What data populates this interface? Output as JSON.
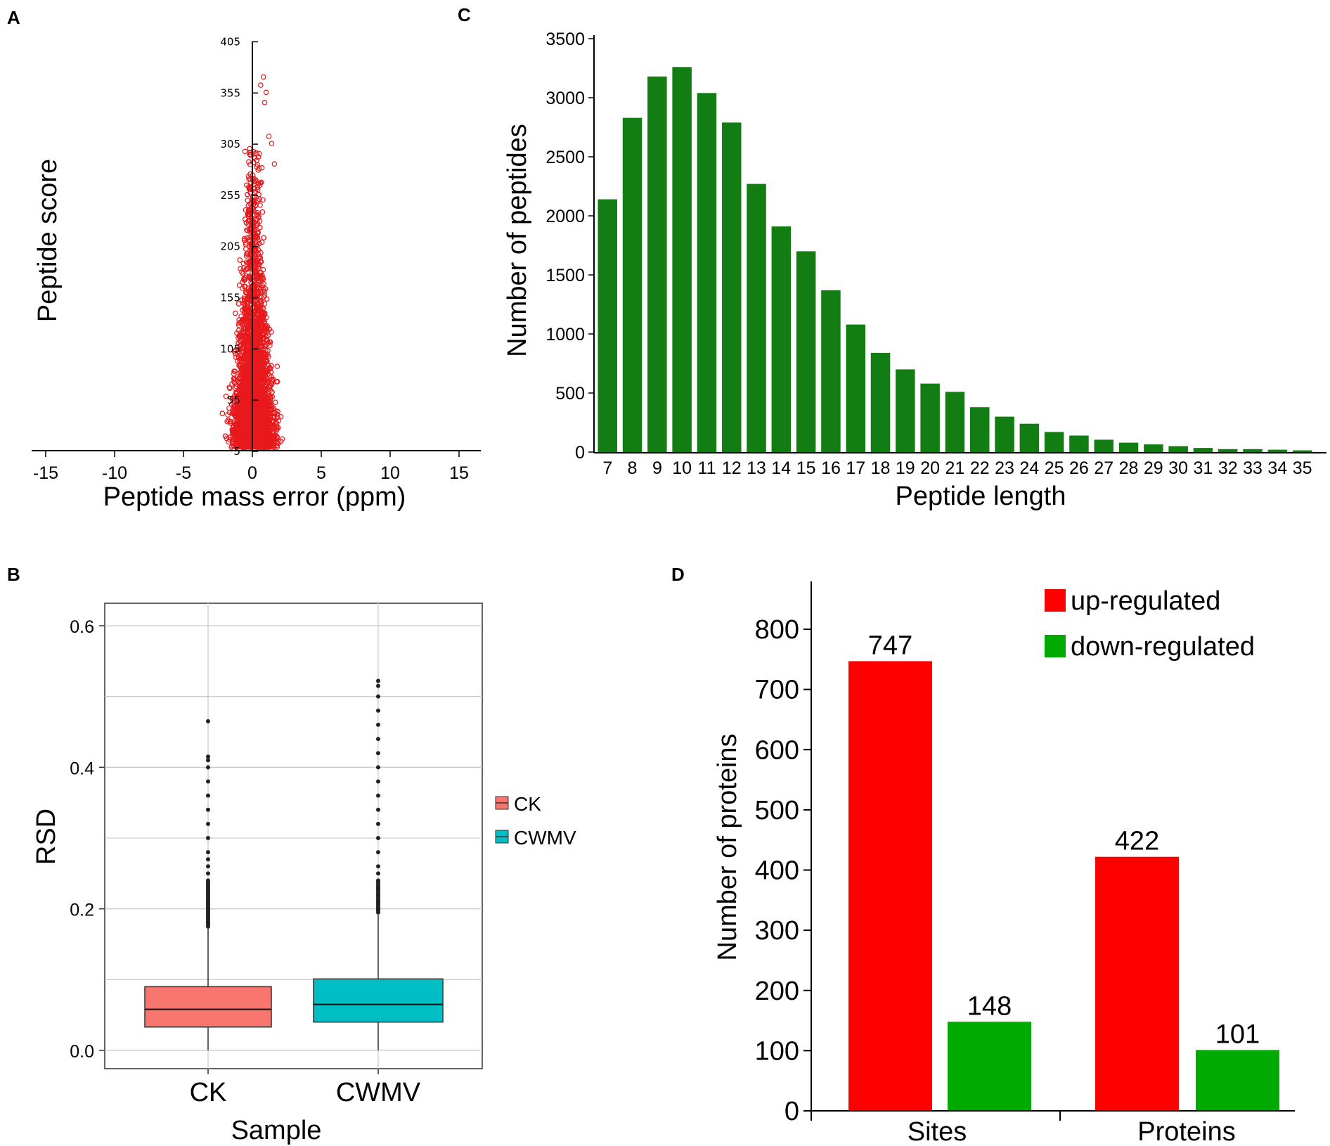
{
  "panels": {
    "A": {
      "letter": "A"
    },
    "B": {
      "letter": "B"
    },
    "C": {
      "letter": "C"
    },
    "D": {
      "letter": "D"
    }
  },
  "chart_data": [
    {
      "id": "A",
      "type": "scatter",
      "xlabel": "Peptide mass error (ppm)",
      "ylabel": "Peptide score",
      "xlim": [
        -17,
        16
      ],
      "ylim": [
        5,
        405
      ],
      "xticks": [
        "-15",
        "-10",
        "-5",
        "0",
        "5",
        "10",
        "15"
      ],
      "yticks": [
        "5",
        "55",
        "105",
        "155",
        "205",
        "255",
        "305",
        "355",
        "405"
      ],
      "point_color": "#e8191c",
      "point_count": 4200,
      "distribution": "funnel centered at 0 ppm; spread about ±2.5 ppm at low scores narrowing to ±0.5 ppm near score 300; maximum score ≈ 370"
    },
    {
      "id": "B",
      "type": "box",
      "title": "",
      "xlabel": "Sample",
      "ylabel": "RSD",
      "ylim": [
        -0.03,
        0.63
      ],
      "yticks": [
        "0.0",
        "0.2",
        "0.4",
        "0.6"
      ],
      "categories": [
        "CK",
        "CWMV"
      ],
      "legend": [
        "CK",
        "CWMV"
      ],
      "legend_position": "right",
      "series": [
        {
          "name": "CK",
          "color": "#f8766d",
          "min": 0.0,
          "q1": 0.033,
          "median": 0.058,
          "q3": 0.09,
          "whisker_high": 0.175,
          "max": 0.465,
          "outliers": [
            0.18,
            0.19,
            0.2,
            0.21,
            0.22,
            0.23,
            0.24,
            0.25,
            0.26,
            0.27,
            0.28,
            0.3,
            0.32,
            0.34,
            0.36,
            0.38,
            0.4,
            0.41,
            0.415,
            0.465
          ]
        },
        {
          "name": "CWMV",
          "color": "#00bfc4",
          "min": 0.0,
          "q1": 0.04,
          "median": 0.065,
          "q3": 0.101,
          "whisker_high": 0.195,
          "max": 0.522,
          "outliers": [
            0.2,
            0.21,
            0.22,
            0.23,
            0.24,
            0.25,
            0.26,
            0.28,
            0.3,
            0.32,
            0.34,
            0.36,
            0.38,
            0.4,
            0.42,
            0.44,
            0.46,
            0.48,
            0.5,
            0.515,
            0.522
          ]
        }
      ]
    },
    {
      "id": "C",
      "type": "bar",
      "xlabel": "Peptide length",
      "ylabel": "Number of peptides",
      "ylim": [
        0,
        3500
      ],
      "yticks": [
        "0",
        "500",
        "1000",
        "1500",
        "2000",
        "2500",
        "3000",
        "3500"
      ],
      "bar_color": "#127d12",
      "categories": [
        "7",
        "8",
        "9",
        "10",
        "11",
        "12",
        "13",
        "14",
        "15",
        "16",
        "17",
        "18",
        "19",
        "20",
        "21",
        "22",
        "23",
        "24",
        "25",
        "26",
        "27",
        "28",
        "29",
        "30",
        "31",
        "32",
        "33",
        "34",
        "35"
      ],
      "values": [
        2140,
        2830,
        3180,
        3260,
        3040,
        2790,
        2270,
        1910,
        1700,
        1370,
        1080,
        840,
        700,
        580,
        510,
        380,
        300,
        240,
        170,
        140,
        105,
        80,
        65,
        50,
        35,
        25,
        25,
        20,
        15
      ]
    },
    {
      "id": "D",
      "type": "bar",
      "xlabel": "",
      "ylabel": "Number of proteins",
      "ylim": [
        0,
        870
      ],
      "yticks": [
        "0",
        "100",
        "200",
        "300",
        "400",
        "500",
        "600",
        "700",
        "800"
      ],
      "categories": [
        "Sites",
        "Proteins"
      ],
      "legend_position": "top-right",
      "series": [
        {
          "name": "up-regulated",
          "color": "#ff0000",
          "values": [
            747,
            422
          ],
          "labels": [
            "747",
            "422"
          ]
        },
        {
          "name": "down-regulated",
          "color": "#00aa00",
          "values": [
            148,
            101
          ],
          "labels": [
            "148",
            "101"
          ]
        }
      ]
    }
  ]
}
